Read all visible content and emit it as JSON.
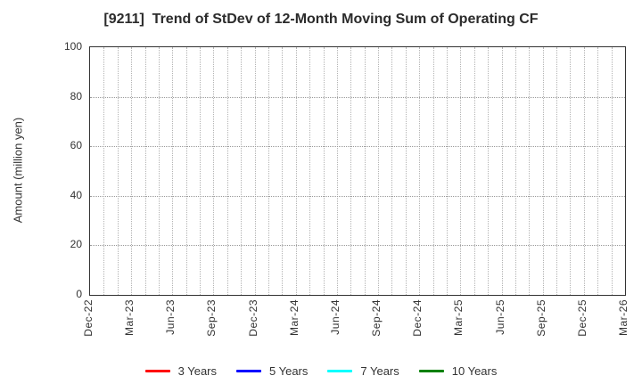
{
  "chart_data": {
    "type": "line",
    "title": "[9211]  Trend of StDev of 12-Month Moving Sum of Operating CF",
    "xlabel": "",
    "ylabel": "Amount (million yen)",
    "ylim": [
      0,
      100
    ],
    "yticks": [
      0,
      20,
      40,
      60,
      80,
      100
    ],
    "x_tick_labels": [
      "Dec-22",
      "Mar-23",
      "Jun-23",
      "Sep-23",
      "Dec-23",
      "Mar-24",
      "Jun-24",
      "Sep-24",
      "Dec-24",
      "Mar-25",
      "Jun-25",
      "Sep-25",
      "Dec-25",
      "Mar-26"
    ],
    "months_per_tick": 3,
    "grid": true,
    "grid_style": "dotted",
    "plot_empty": true,
    "legend_position": "bottom",
    "series": [
      {
        "name": "3 Years",
        "color": "#ff0000",
        "values": []
      },
      {
        "name": "5 Years",
        "color": "#0000ff",
        "values": []
      },
      {
        "name": "7 Years",
        "color": "#00ffff",
        "values": []
      },
      {
        "name": "10 Years",
        "color": "#008000",
        "values": []
      }
    ]
  }
}
